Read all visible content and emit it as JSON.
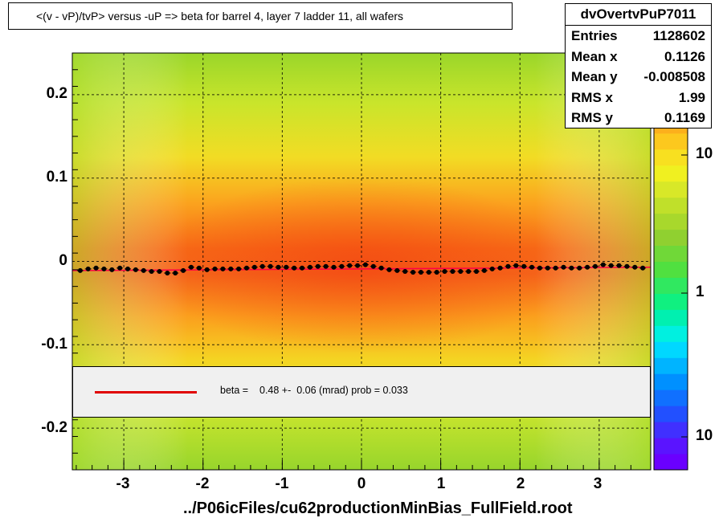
{
  "title": "<(v - vP)/tvP> versus  -uP => beta for barrel 4, layer 7 ladder 11, all wafers",
  "stats": {
    "name": "dvOvertvPuP7011",
    "rows": [
      {
        "label": "Entries",
        "value": "1128602"
      },
      {
        "label": "Mean x",
        "value": "0.1126"
      },
      {
        "label": "Mean y",
        "value": "-0.008508"
      },
      {
        "label": "RMS x",
        "value": "1.99"
      },
      {
        "label": "RMS y",
        "value": "0.1169"
      }
    ]
  },
  "fit_legend": {
    "text": "beta =    0.48 +-  0.06 (mrad) prob = 0.033",
    "line_color": "#e00000"
  },
  "colors": {
    "profile_points": "#000000",
    "fit_line": "#ff0044",
    "background": "#ffffff"
  },
  "chart_data": {
    "type": "heatmap",
    "title": "<(v - vP)/tvP> versus  -uP => beta for barrel 4, layer 7 ladder 11, all wafers",
    "xlabel": "../P06icFiles/cu62productionMinBias_FullField.root",
    "ylabel": "",
    "xlim": [
      -3.65,
      3.65
    ],
    "ylim": [
      -0.25,
      0.25
    ],
    "x_ticks": [
      "-3",
      "-2",
      "-1",
      "0",
      "1",
      "2",
      "3"
    ],
    "y_ticks": [
      "0.2",
      "0.1",
      "0",
      "-0.1",
      "-0.2"
    ],
    "z_ticks": [
      "10",
      "1",
      "10"
    ],
    "z_scale": "log",
    "grid": true,
    "profile": {
      "name": "profile",
      "x": [
        -3.55,
        -3.45,
        -3.35,
        -3.25,
        -3.15,
        -3.05,
        -2.95,
        -2.85,
        -2.75,
        -2.65,
        -2.55,
        -2.45,
        -2.35,
        -2.25,
        -2.15,
        -2.05,
        -1.95,
        -1.85,
        -1.75,
        -1.65,
        -1.55,
        -1.45,
        -1.35,
        -1.25,
        -1.15,
        -1.05,
        -0.95,
        -0.85,
        -0.75,
        -0.65,
        -0.55,
        -0.45,
        -0.35,
        -0.25,
        -0.15,
        -0.05,
        0.05,
        0.15,
        0.25,
        0.35,
        0.45,
        0.55,
        0.65,
        0.75,
        0.85,
        0.95,
        1.05,
        1.15,
        1.25,
        1.35,
        1.45,
        1.55,
        1.65,
        1.75,
        1.85,
        1.95,
        2.05,
        2.15,
        2.25,
        2.35,
        2.45,
        2.55,
        2.65,
        2.75,
        2.85,
        2.95,
        3.05,
        3.15,
        3.25,
        3.35,
        3.45,
        3.55
      ],
      "y": [
        -0.011,
        -0.009,
        -0.008,
        -0.009,
        -0.01,
        -0.008,
        -0.009,
        -0.01,
        -0.011,
        -0.012,
        -0.012,
        -0.014,
        -0.014,
        -0.011,
        -0.007,
        -0.008,
        -0.01,
        -0.009,
        -0.009,
        -0.009,
        -0.009,
        -0.008,
        -0.007,
        -0.006,
        -0.006,
        -0.007,
        -0.007,
        -0.008,
        -0.008,
        -0.007,
        -0.006,
        -0.006,
        -0.007,
        -0.006,
        -0.005,
        -0.005,
        -0.004,
        -0.006,
        -0.008,
        -0.01,
        -0.011,
        -0.012,
        -0.013,
        -0.013,
        -0.013,
        -0.013,
        -0.012,
        -0.012,
        -0.012,
        -0.012,
        -0.012,
        -0.011,
        -0.009,
        -0.008,
        -0.006,
        -0.005,
        -0.006,
        -0.007,
        -0.008,
        -0.008,
        -0.008,
        -0.007,
        -0.008,
        -0.008,
        -0.007,
        -0.006,
        -0.004,
        -0.005,
        -0.005,
        -0.006,
        -0.007,
        -0.008
      ]
    },
    "fit_line": {
      "name": "fit",
      "x": [
        -3.65,
        3.65
      ],
      "y": [
        -0.011,
        -0.007
      ]
    }
  },
  "footer": {
    "xtitle": "../P06icFiles/cu62productionMinBias_FullField.root"
  }
}
